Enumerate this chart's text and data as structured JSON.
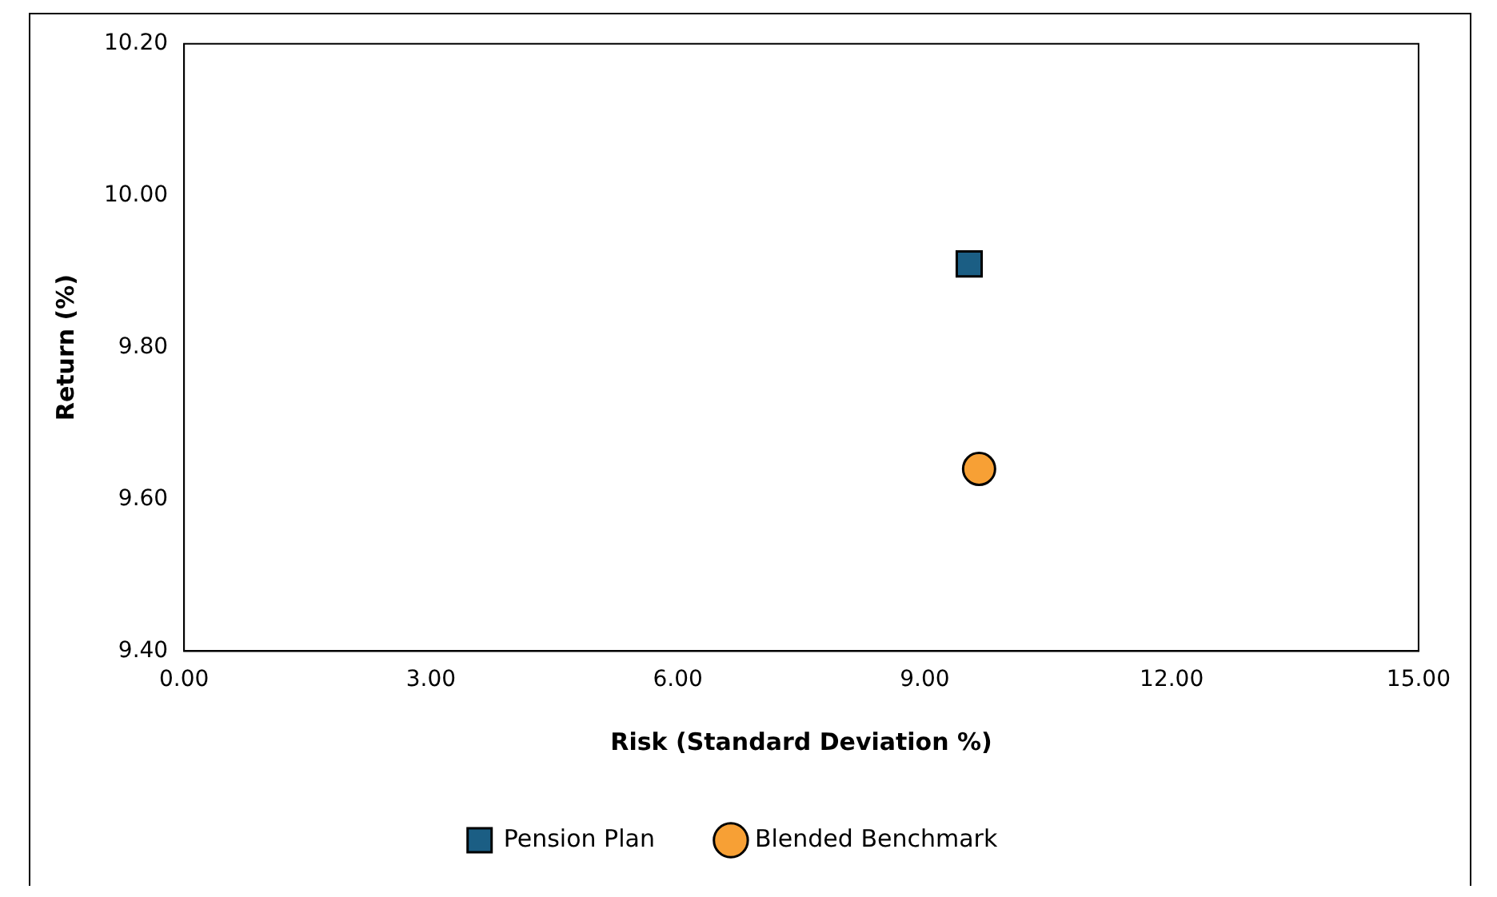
{
  "chart_data": {
    "type": "scatter",
    "xlabel": "Risk (Standard Deviation %)",
    "ylabel": "Return (%)",
    "series": [
      {
        "name": "Pension Plan",
        "color": "#1b5e84",
        "marker": "square",
        "x": [
          9.54
        ],
        "values": [
          9.91
        ]
      },
      {
        "name": "Blended Benchmark",
        "color": "#f7a035",
        "marker": "circle",
        "x": [
          9.66
        ],
        "values": [
          9.64
        ]
      }
    ],
    "xlim": [
      0,
      15
    ],
    "xticks": [
      {
        "value": 0,
        "label": "0.00"
      },
      {
        "value": 3,
        "label": "3.00"
      },
      {
        "value": 6,
        "label": "6.00"
      },
      {
        "value": 9,
        "label": "9.00"
      },
      {
        "value": 12,
        "label": "12.00"
      },
      {
        "value": 15,
        "label": "15.00"
      }
    ],
    "ylim": [
      9.4,
      10.2
    ],
    "yticks": [
      {
        "value": 9.4,
        "label": "9.40"
      },
      {
        "value": 9.6,
        "label": "9.60"
      },
      {
        "value": 9.8,
        "label": "9.80"
      },
      {
        "value": 10,
        "label": "10.00"
      },
      {
        "value": 10.2,
        "label": "10.20"
      }
    ],
    "grid": false,
    "legend": "bottom"
  }
}
